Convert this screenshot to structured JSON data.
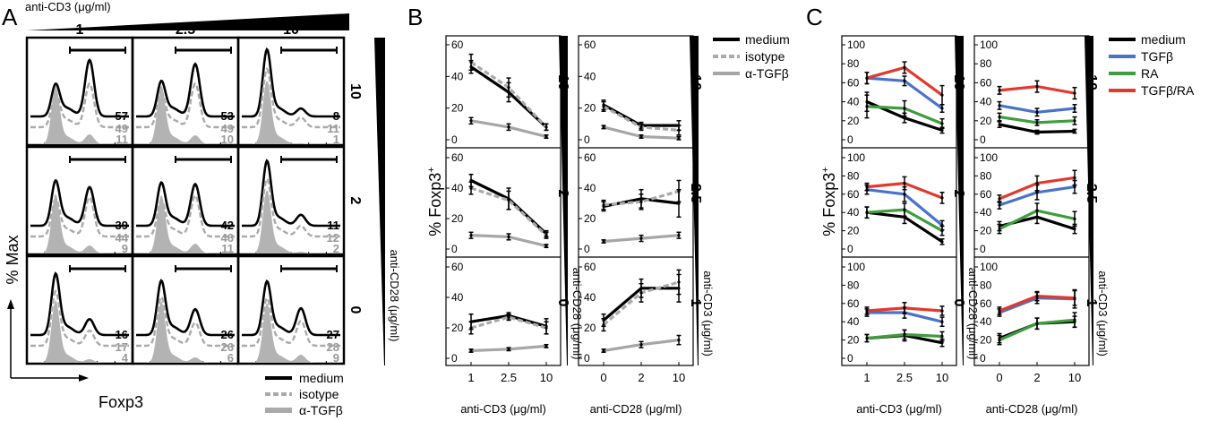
{
  "colors": {
    "medium": "#000000",
    "isotype": "#aaaaaa",
    "antiTGFb": "#a6a6a6",
    "TGFb": "#4a72c9",
    "RA": "#3f9c3f",
    "TGFbRA": "#e03a2f",
    "fill": "#b3b3b3"
  },
  "panelA": {
    "letter": "A",
    "top_label": "anti-CD3 (μg/ml)",
    "col_headers": [
      "1",
      "2.5",
      "10"
    ],
    "row_headers": [
      "10",
      "2",
      "0"
    ],
    "side_label": "anti-CD28 (μg/ml)",
    "ylabel": "% Max",
    "xlabel": "Foxp3",
    "legend": [
      "medium",
      "isotype",
      "α-TGFβ"
    ],
    "numbers": [
      [
        [
          "57",
          "49",
          "11"
        ],
        [
          "53",
          "49",
          "10"
        ],
        [
          "8",
          "11",
          "1"
        ]
      ],
      [
        [
          "39",
          "44",
          "9"
        ],
        [
          "42",
          "46",
          "11"
        ],
        [
          "11",
          "12",
          "2"
        ]
      ],
      [
        [
          "16",
          "17",
          "4"
        ],
        [
          "26",
          "26",
          "6"
        ],
        [
          "27",
          "28",
          "9"
        ]
      ]
    ]
  },
  "panelB": {
    "letter": "B",
    "ylabel": "% Foxp3",
    "ylabel_sup": "+"
  },
  "panelC": {
    "letter": "C",
    "ylabel": "% Foxp3",
    "ylabel_sup": "+"
  },
  "chart_data": [
    {
      "id": "B-left",
      "type": "line",
      "xlabel": "anti-CD3 (μg/ml)",
      "side_label": "anti-CD28 (μg/ml)",
      "x": [
        "1",
        "2.5",
        "10"
      ],
      "ylim": [
        0,
        60
      ],
      "yticks": [
        "0",
        "20",
        "40",
        "60"
      ],
      "legend": [],
      "rows": [
        {
          "label": "10",
          "series": [
            {
              "name": "medium",
              "values": [
                46,
                30,
                8
              ],
              "err": [
                4,
                6,
                2
              ]
            },
            {
              "name": "isotype",
              "values": [
                49,
                33,
                8
              ],
              "err": [
                5,
                6,
                2
              ]
            },
            {
              "name": "α-TGFβ",
              "values": [
                12,
                8,
                2
              ],
              "err": [
                2,
                2,
                1
              ]
            }
          ]
        },
        {
          "label": "2",
          "series": [
            {
              "name": "medium",
              "values": [
                45,
                33,
                10
              ],
              "err": [
                4,
                7,
                2
              ]
            },
            {
              "name": "isotype",
              "values": [
                40,
                32,
                9
              ],
              "err": [
                4,
                6,
                2
              ]
            },
            {
              "name": "α-TGFβ",
              "values": [
                9,
                8,
                2
              ],
              "err": [
                2,
                2,
                1
              ]
            }
          ]
        },
        {
          "label": "0",
          "series": [
            {
              "name": "medium",
              "values": [
                24,
                28,
                21
              ],
              "err": [
                5,
                2,
                5
              ]
            },
            {
              "name": "isotype",
              "values": [
                20,
                27,
                20
              ],
              "err": [
                4,
                2,
                4
              ]
            },
            {
              "name": "α-TGFβ",
              "values": [
                5,
                6,
                8
              ],
              "err": [
                1,
                1,
                1
              ]
            }
          ]
        }
      ]
    },
    {
      "id": "B-right",
      "type": "line",
      "xlabel": "anti-CD28 (μg/ml)",
      "side_label": "anti-CD3 (μg/ml)",
      "x": [
        "0",
        "2",
        "10"
      ],
      "ylim": [
        0,
        60
      ],
      "yticks": [
        "0",
        "20",
        "40",
        "60"
      ],
      "legend": [
        "medium",
        "isotype",
        "α-TGFβ"
      ],
      "rows": [
        {
          "label": "10",
          "series": [
            {
              "name": "medium",
              "values": [
                22,
                9,
                9
              ],
              "err": [
                3,
                2,
                3
              ]
            },
            {
              "name": "isotype",
              "values": [
                21,
                8,
                6
              ],
              "err": [
                3,
                2,
                3
              ]
            },
            {
              "name": "α-TGFβ",
              "values": [
                8,
                2,
                1
              ],
              "err": [
                1,
                1,
                1
              ]
            }
          ]
        },
        {
          "label": "2.5",
          "series": [
            {
              "name": "medium",
              "values": [
                28,
                33,
                30
              ],
              "err": [
                3,
                6,
                9
              ]
            },
            {
              "name": "isotype",
              "values": [
                29,
                31,
                38
              ],
              "err": [
                3,
                5,
                7
              ]
            },
            {
              "name": "α-TGFβ",
              "values": [
                5,
                7,
                9
              ],
              "err": [
                1,
                2,
                2
              ]
            }
          ]
        },
        {
          "label": "1",
          "series": [
            {
              "name": "medium",
              "values": [
                25,
                46,
                46
              ],
              "err": [
                4,
                6,
                9
              ]
            },
            {
              "name": "isotype",
              "values": [
                22,
                43,
                50
              ],
              "err": [
                4,
                6,
                8
              ]
            },
            {
              "name": "α-TGFβ",
              "values": [
                5,
                9,
                12
              ],
              "err": [
                1,
                2,
                3
              ]
            }
          ]
        }
      ]
    },
    {
      "id": "C-left",
      "type": "line",
      "xlabel": "anti-CD3 (μg/ml)",
      "side_label": "anti-CD28 (μg/ml)",
      "x": [
        "1",
        "2.5",
        "10"
      ],
      "ylim": [
        0,
        100
      ],
      "yticks": [
        "0",
        "20",
        "40",
        "60",
        "80",
        "100"
      ],
      "legend": [],
      "rows": [
        {
          "label": "10",
          "series": [
            {
              "name": "medium",
              "values": [
                40,
                23,
                10
              ],
              "err": [
                10,
                5,
                3
              ]
            },
            {
              "name": "TGFβ",
              "values": [
                65,
                62,
                33
              ],
              "err": [
                6,
                5,
                4
              ]
            },
            {
              "name": "RA",
              "values": [
                35,
                33,
                17
              ],
              "err": [
                12,
                8,
                5
              ]
            },
            {
              "name": "TGFβ/RA",
              "values": [
                65,
                76,
                47
              ],
              "err": [
                6,
                6,
                10
              ]
            }
          ]
        },
        {
          "label": "2",
          "series": [
            {
              "name": "medium",
              "values": [
                40,
                35,
                8
              ],
              "err": [
                6,
                7,
                3
              ]
            },
            {
              "name": "TGFβ",
              "values": [
                65,
                60,
                26
              ],
              "err": [
                5,
                8,
                5
              ]
            },
            {
              "name": "RA",
              "values": [
                40,
                43,
                20
              ],
              "err": [
                6,
                7,
                5
              ]
            },
            {
              "name": "TGFβ/RA",
              "values": [
                68,
                72,
                56
              ],
              "err": [
                4,
                7,
                6
              ]
            }
          ]
        },
        {
          "label": "0",
          "series": [
            {
              "name": "medium",
              "values": [
                22,
                25,
                17
              ],
              "err": [
                4,
                6,
                4
              ]
            },
            {
              "name": "TGFβ",
              "values": [
                50,
                50,
                40
              ],
              "err": [
                4,
                6,
                5
              ]
            },
            {
              "name": "RA",
              "values": [
                22,
                26,
                24
              ],
              "err": [
                4,
                5,
                5
              ]
            },
            {
              "name": "TGFβ/RA",
              "values": [
                52,
                55,
                52
              ],
              "err": [
                4,
                6,
                5
              ]
            }
          ]
        }
      ]
    },
    {
      "id": "C-right",
      "type": "line",
      "xlabel": "anti-CD28 (μg/ml)",
      "side_label": "anti-CD3 (μg/ml)",
      "x": [
        "0",
        "2",
        "10"
      ],
      "ylim": [
        0,
        100
      ],
      "yticks": [
        "0",
        "20",
        "40",
        "60",
        "80",
        "100"
      ],
      "legend": [
        "medium",
        "TGFβ",
        "RA",
        "TGFβ/RA"
      ],
      "rows": [
        {
          "label": "10",
          "series": [
            {
              "name": "medium",
              "values": [
                16,
                8,
                9
              ],
              "err": [
                3,
                2,
                2
              ]
            },
            {
              "name": "TGFβ",
              "values": [
                36,
                29,
                33
              ],
              "err": [
                4,
                4,
                4
              ]
            },
            {
              "name": "RA",
              "values": [
                24,
                18,
                20
              ],
              "err": [
                4,
                3,
                4
              ]
            },
            {
              "name": "TGFβ/RA",
              "values": [
                52,
                56,
                49
              ],
              "err": [
                4,
                6,
                6
              ]
            }
          ]
        },
        {
          "label": "2.5",
          "series": [
            {
              "name": "medium",
              "values": [
                25,
                35,
                22
              ],
              "err": [
                5,
                7,
                5
              ]
            },
            {
              "name": "TGFβ",
              "values": [
                48,
                62,
                68
              ],
              "err": [
                4,
                8,
                7
              ]
            },
            {
              "name": "RA",
              "values": [
                22,
                42,
                33
              ],
              "err": [
                5,
                8,
                8
              ]
            },
            {
              "name": "TGFβ/RA",
              "values": [
                55,
                72,
                78
              ],
              "err": [
                4,
                8,
                8
              ]
            }
          ]
        },
        {
          "label": "1",
          "series": [
            {
              "name": "medium",
              "values": [
                22,
                38,
                40
              ],
              "err": [
                5,
                6,
                6
              ]
            },
            {
              "name": "TGFβ",
              "values": [
                50,
                66,
                65
              ],
              "err": [
                4,
                6,
                10
              ]
            },
            {
              "name": "RA",
              "values": [
                20,
                38,
                42
              ],
              "err": [
                5,
                6,
                8
              ]
            },
            {
              "name": "TGFβ/RA",
              "values": [
                52,
                68,
                66
              ],
              "err": [
                4,
                5,
                8
              ]
            }
          ]
        }
      ]
    }
  ]
}
